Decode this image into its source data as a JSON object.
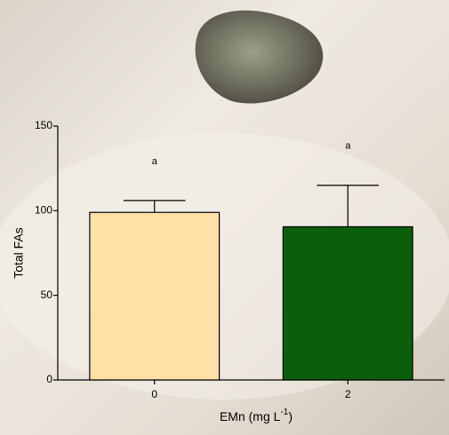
{
  "chart_data": {
    "type": "bar",
    "y_label": "Total FAs",
    "x_label": {
      "text": "EMn (mg L",
      "superscript": "-1",
      "suffix": ")"
    },
    "categories": [
      "0",
      "2"
    ],
    "values": [
      99,
      90.5
    ],
    "errors": [
      7,
      24.5
    ],
    "annotations": [
      "a",
      "a"
    ],
    "colors": [
      "#ffe0a6",
      "#0b5e0b"
    ],
    "ylim": [
      0,
      150
    ],
    "yticks": [
      0,
      50,
      100,
      150
    ]
  }
}
